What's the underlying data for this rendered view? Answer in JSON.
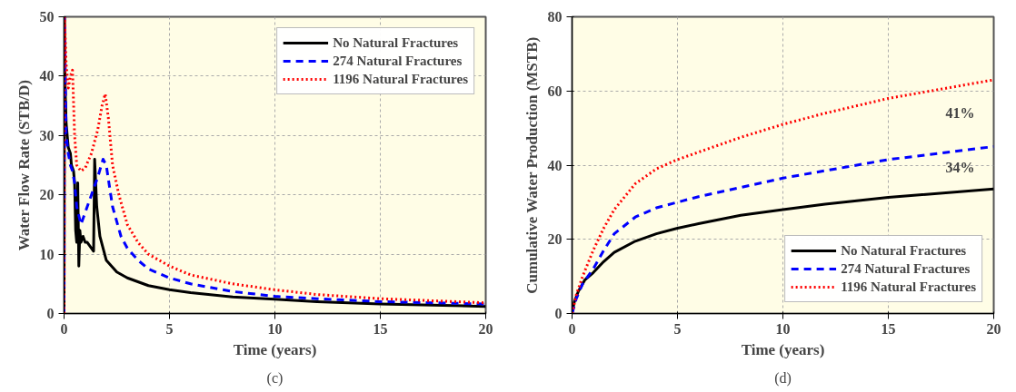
{
  "chart_data": [
    {
      "type": "line",
      "xlabel": "Time (years)",
      "ylabel": "Water Flow Rate (STB/D)",
      "annotations": [
        "(c)"
      ],
      "xlim": [
        0,
        20
      ],
      "xticks": [
        0,
        5,
        10,
        15,
        20
      ],
      "ylim": [
        0,
        50
      ],
      "yticks": [
        0,
        10,
        20,
        30,
        40,
        50
      ],
      "grid": true,
      "legend": "top right",
      "marker": "none",
      "series": [
        {
          "name": "No Natural Fractures",
          "color": "#000000",
          "line_style": "solid",
          "x": [
            0,
            0.02,
            0.05,
            0.1,
            0.2,
            0.3,
            0.35,
            0.45,
            0.5,
            0.55,
            0.6,
            0.65,
            0.7,
            0.75,
            0.8,
            0.9,
            1.0,
            1.1,
            1.2,
            1.3,
            1.4,
            1.45,
            1.55,
            1.7,
            2,
            2.5,
            3,
            4,
            5,
            6,
            8,
            10,
            12,
            15,
            20
          ],
          "values": [
            0,
            50,
            38,
            32,
            28,
            27,
            25,
            24,
            22,
            14,
            12,
            22,
            8,
            14,
            12,
            13,
            12,
            12,
            11.5,
            11,
            10.5,
            26,
            18,
            13,
            9,
            7,
            6,
            4.7,
            4,
            3.5,
            2.8,
            2.4,
            2,
            1.6,
            1.2
          ]
        },
        {
          "name": "274 Natural Fractures",
          "color": "#0000ff",
          "line_style": "dashed",
          "x": [
            0,
            0.02,
            0.1,
            0.2,
            0.3,
            0.4,
            0.5,
            0.6,
            0.8,
            1.0,
            1.3,
            1.6,
            1.85,
            2,
            2.3,
            2.7,
            3,
            3.5,
            4,
            5,
            6,
            8,
            10,
            12,
            15,
            20
          ],
          "values": [
            0,
            50,
            30,
            27,
            25,
            24,
            22,
            18,
            15,
            17,
            20,
            23,
            26,
            25,
            18,
            13,
            11,
            9,
            7.5,
            6,
            5,
            3.7,
            2.9,
            2.5,
            2,
            1.6
          ]
        },
        {
          "name": "1196 Natural Fractures",
          "color": "#ff0000",
          "line_style": "dotted",
          "x": [
            0,
            0.02,
            0.1,
            0.2,
            0.3,
            0.4,
            0.5,
            0.6,
            0.8,
            1.0,
            1.3,
            1.6,
            1.8,
            1.95,
            2.1,
            2.3,
            2.6,
            3,
            3.5,
            4,
            5,
            6,
            8,
            10,
            12,
            15,
            20
          ],
          "values": [
            0,
            50,
            42,
            38,
            40,
            41,
            30,
            25,
            24,
            24.5,
            27,
            31,
            35,
            37,
            33,
            25,
            20,
            15,
            12,
            10,
            8,
            6.5,
            5,
            4,
            3.2,
            2.5,
            1.8
          ]
        }
      ]
    },
    {
      "type": "line",
      "xlabel": "Time (years)",
      "ylabel": "Cumulative Water Production (MSTB)",
      "annotations": [
        "41%",
        "34%",
        "(d)"
      ],
      "xlim": [
        0,
        20
      ],
      "xticks": [
        0,
        5,
        10,
        15,
        20
      ],
      "ylim": [
        0,
        80
      ],
      "yticks": [
        0,
        20,
        40,
        60,
        80
      ],
      "grid": true,
      "legend": "bottom right",
      "marker": "none",
      "series": [
        {
          "name": "No Natural Fractures",
          "color": "#000000",
          "line_style": "solid",
          "x": [
            0,
            0.1,
            0.3,
            0.6,
            1,
            1.5,
            2,
            3,
            4,
            5,
            6,
            8,
            10,
            12,
            15,
            20
          ],
          "values": [
            0,
            3,
            6,
            9,
            11,
            14,
            16.5,
            19.5,
            21.5,
            23,
            24.2,
            26.5,
            28,
            29.5,
            31.3,
            33.6
          ]
        },
        {
          "name": "274 Natural Fractures",
          "color": "#0000ff",
          "line_style": "dashed",
          "x": [
            0,
            0.2,
            0.5,
            1,
            1.5,
            2,
            3,
            4,
            5,
            6,
            8,
            10,
            12,
            15,
            20
          ],
          "values": [
            0,
            4,
            8,
            12,
            17,
            21.5,
            26,
            28.5,
            30,
            31.5,
            34,
            36.5,
            38.5,
            41.5,
            45
          ]
        },
        {
          "name": "1196 Natural Fractures",
          "color": "#ff0000",
          "line_style": "dotted",
          "x": [
            0,
            0.2,
            0.5,
            1,
            1.5,
            2,
            3,
            4,
            5,
            6,
            8,
            10,
            12,
            15,
            20
          ],
          "values": [
            0,
            5,
            10,
            17,
            23,
            28,
            35,
            39,
            41.5,
            43.5,
            47.5,
            51,
            54,
            58,
            63
          ]
        }
      ]
    }
  ]
}
